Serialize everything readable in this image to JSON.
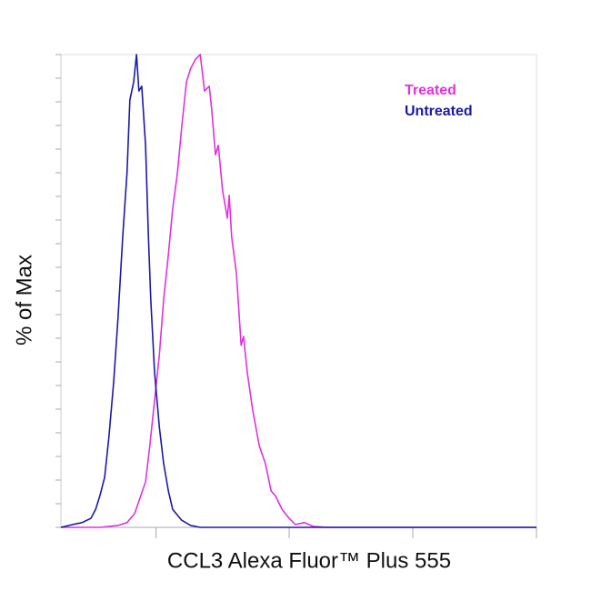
{
  "chart_data": {
    "type": "line",
    "xlabel": "CCL3 Alexa Fluor™ Plus 555",
    "ylabel": "% of Max",
    "xlim": [
      0,
      100
    ],
    "ylim": [
      0,
      100
    ],
    "xticks": [
      20,
      48,
      74,
      100
    ],
    "yticks": [
      0,
      5,
      10,
      15,
      20,
      25,
      30,
      35,
      40,
      45,
      50,
      55,
      60,
      65,
      70,
      75,
      80,
      85,
      90,
      95,
      100
    ],
    "legend": "upper right",
    "series": [
      {
        "name": "Treated",
        "color": "#dd33dd",
        "x": [
          0,
          8.2,
          12.0,
          13.9,
          15.5,
          16.8,
          17.8,
          18.7,
          19.7,
          20.7,
          21.6,
          22.6,
          23.5,
          24.5,
          25.4,
          26.4,
          27.3,
          28.3,
          29.3,
          30.2,
          31.2,
          31.7,
          32.5,
          33.1,
          34.0,
          35.0,
          35.4,
          35.9,
          36.9,
          37.9,
          38.4,
          39.2,
          40.3,
          41.7,
          43.0,
          44.2,
          45.1,
          46.5,
          48.0,
          49.3,
          51.2,
          53.1,
          56.0,
          100
        ],
        "values": [
          0,
          0,
          0.4,
          1,
          2.9,
          6.7,
          9.6,
          17.3,
          26.9,
          36.5,
          48.1,
          57.7,
          67.3,
          75,
          84.6,
          94.2,
          97.1,
          99,
          100,
          92.3,
          93.3,
          88.5,
          78.8,
          80.8,
          71.2,
          65.4,
          70.2,
          61.5,
          53.8,
          38.5,
          40.4,
          32.7,
          25,
          17.3,
          13.5,
          7.7,
          6.7,
          3.8,
          1.9,
          0.6,
          1,
          0.2,
          0,
          0
        ]
      },
      {
        "name": "Untreated",
        "color": "#1a1aa8",
        "x": [
          0,
          2.5,
          4.4,
          6.3,
          7.3,
          8.2,
          9.2,
          10.1,
          11.1,
          12.0,
          13.0,
          13.9,
          14.5,
          15.3,
          15.9,
          16.4,
          17.0,
          17.8,
          18.4,
          18.9,
          19.7,
          20.7,
          21.6,
          22.6,
          23.5,
          25.4,
          27.3,
          29.3,
          100
        ],
        "values": [
          0,
          0.6,
          1,
          1.9,
          3.8,
          6.7,
          10.6,
          19.2,
          30.8,
          44.2,
          61.5,
          75,
          90.4,
          94.2,
          100,
          92.3,
          93.3,
          80.8,
          61.5,
          48.1,
          32.7,
          21.2,
          13.5,
          7.7,
          3.8,
          1.5,
          0.4,
          0,
          0
        ]
      }
    ]
  }
}
